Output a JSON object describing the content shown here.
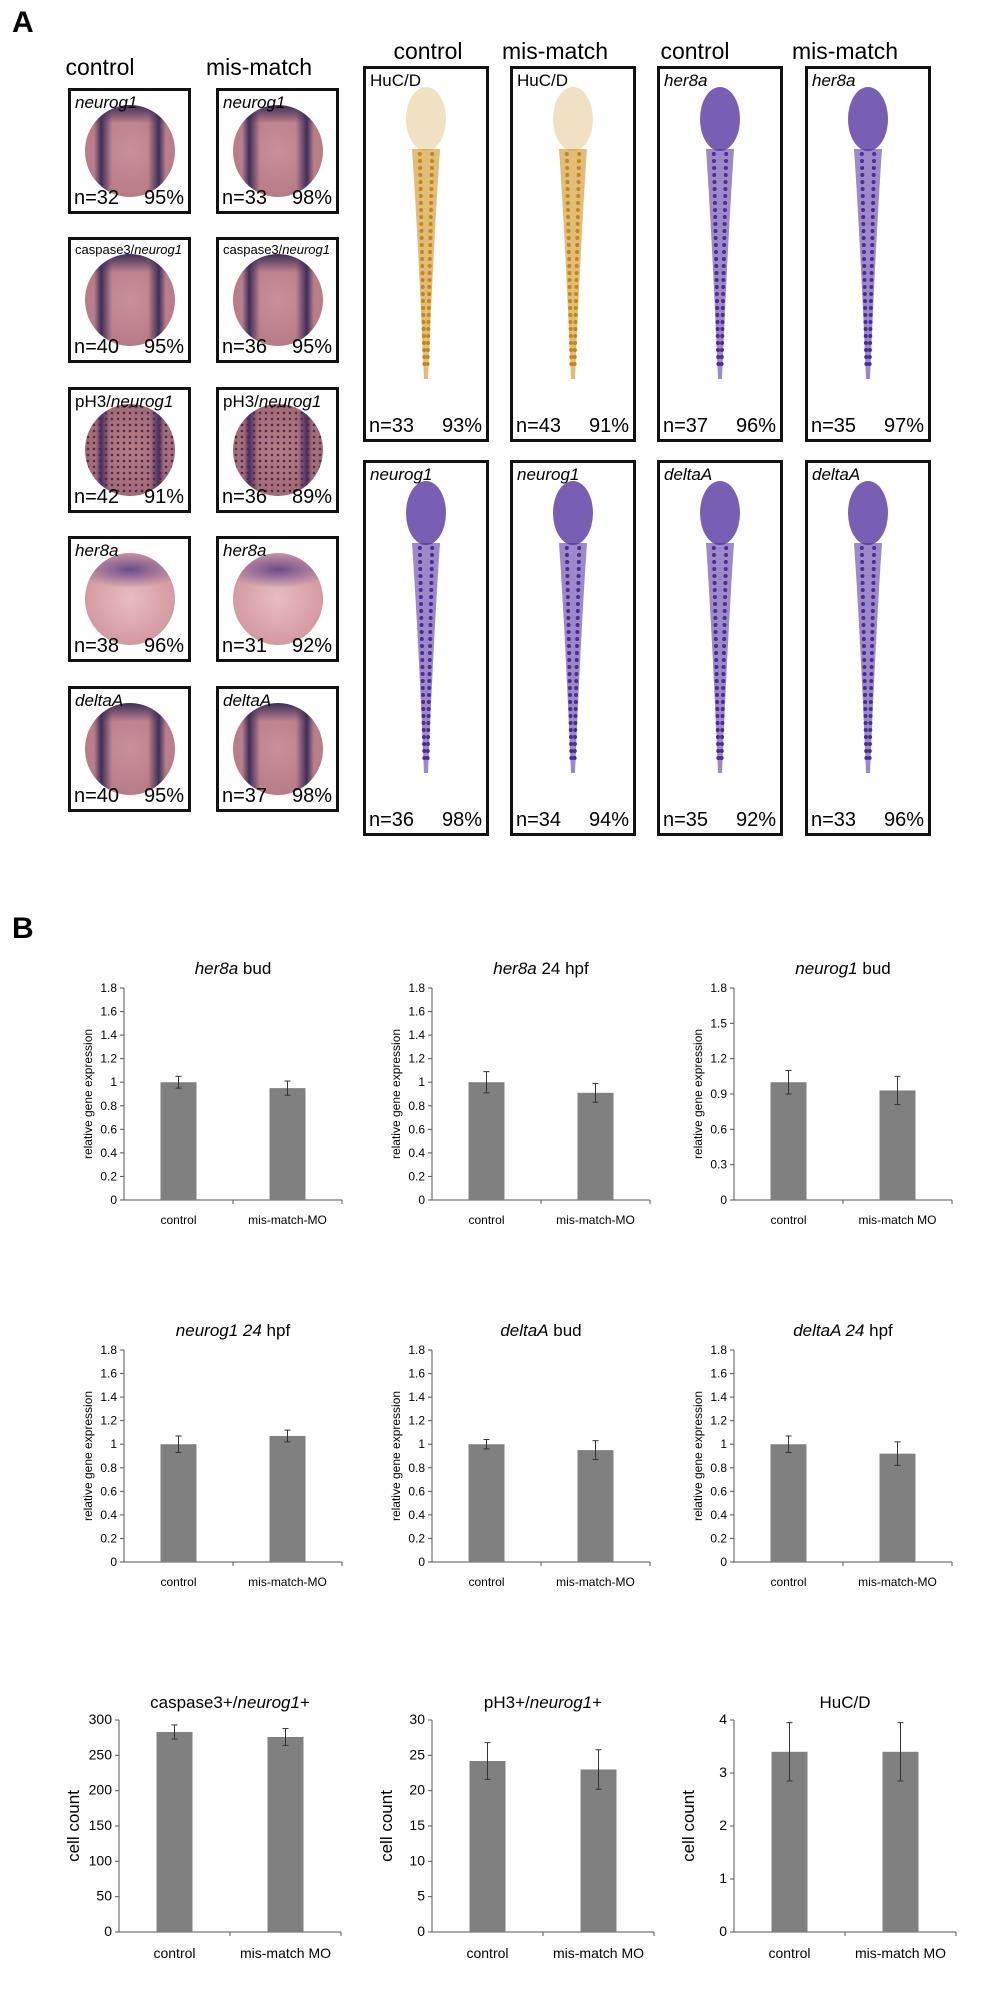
{
  "panel_a": {
    "letter": "A",
    "col_headers": [
      "control",
      "mis-match",
      "control",
      "mis-match",
      "control",
      "mis-match"
    ],
    "small_tiles": [
      {
        "label": "neurog1",
        "italic_part": "neurog1",
        "prefix": "",
        "n": "n=32",
        "pct": "95%",
        "col": 0,
        "row": 0,
        "stain": "dorsal"
      },
      {
        "label": "neurog1",
        "italic_part": "neurog1",
        "prefix": "",
        "n": "n=33",
        "pct": "98%",
        "col": 1,
        "row": 0,
        "stain": "dorsal"
      },
      {
        "label": "caspase3/neurog1",
        "italic_part": "neurog1",
        "prefix": "caspase3/",
        "n": "n=40",
        "pct": "95%",
        "col": 0,
        "row": 1,
        "stain": "dorsal"
      },
      {
        "label": "caspase3/neurog1",
        "italic_part": "neurog1",
        "prefix": "caspase3/",
        "n": "n=36",
        "pct": "95%",
        "col": 1,
        "row": 1,
        "stain": "dorsal"
      },
      {
        "label": "pH3/neurog1",
        "italic_part": "neurog1",
        "prefix": "pH3/",
        "n": "n=42",
        "pct": "91%",
        "col": 0,
        "row": 2,
        "stain": "dotted"
      },
      {
        "label": "pH3/neurog1",
        "italic_part": "neurog1",
        "prefix": "pH3/",
        "n": "n=36",
        "pct": "89%",
        "col": 1,
        "row": 2,
        "stain": "dotted"
      },
      {
        "label": "her8a",
        "italic_part": "her8a",
        "prefix": "",
        "n": "n=38",
        "pct": "96%",
        "col": 0,
        "row": 3,
        "stain": "band"
      },
      {
        "label": "her8a",
        "italic_part": "her8a",
        "prefix": "",
        "n": "n=31",
        "pct": "92%",
        "col": 1,
        "row": 3,
        "stain": "band"
      },
      {
        "label": "deltaA",
        "italic_part": "deltaA",
        "prefix": "",
        "n": "n=40",
        "pct": "95%",
        "col": 0,
        "row": 4,
        "stain": "dorsal"
      },
      {
        "label": "deltaA",
        "italic_part": "deltaA",
        "prefix": "",
        "n": "n=37",
        "pct": "98%",
        "col": 1,
        "row": 4,
        "stain": "dorsal"
      }
    ],
    "tall_tiles": [
      {
        "label": "HuC/D",
        "italic": false,
        "n": "n=33",
        "pct": "93%",
        "col": 0,
        "row": 0,
        "color": "#c8860f"
      },
      {
        "label": "HuC/D",
        "italic": false,
        "n": "n=43",
        "pct": "91%",
        "col": 1,
        "row": 0,
        "color": "#c8860f"
      },
      {
        "label": "her8a",
        "italic": true,
        "n": "n=37",
        "pct": "96%",
        "col": 2,
        "row": 0,
        "color": "#4b2a9a"
      },
      {
        "label": "her8a",
        "italic": true,
        "n": "n=35",
        "pct": "97%",
        "col": 3,
        "row": 0,
        "color": "#4b2a9a"
      },
      {
        "label": "neurog1",
        "italic": true,
        "n": "n=36",
        "pct": "98%",
        "col": 0,
        "row": 1,
        "color": "#4b2a9a"
      },
      {
        "label": "neurog1",
        "italic": true,
        "n": "n=34",
        "pct": "94%",
        "col": 1,
        "row": 1,
        "color": "#4b2a9a"
      },
      {
        "label": "deltaA",
        "italic": true,
        "n": "n=35",
        "pct": "92%",
        "col": 2,
        "row": 1,
        "color": "#4b2a9a"
      },
      {
        "label": "deltaA",
        "italic": true,
        "n": "n=33",
        "pct": "96%",
        "col": 3,
        "row": 1,
        "color": "#4b2a9a"
      }
    ]
  },
  "panel_b": {
    "letter": "B"
  },
  "colors": {
    "bar": "#808080",
    "axis": "#555555",
    "tile_border": "#111111"
  },
  "chart_data": [
    {
      "type": "bar",
      "title_italic": "her8a",
      "title_rest": " bud",
      "ylabel": "relative gene expression",
      "categories": [
        "control",
        "mis-match-MO"
      ],
      "values": [
        1.0,
        0.95
      ],
      "errors": [
        0.05,
        0.06
      ],
      "ylim": [
        0,
        1.8
      ],
      "yticks": [
        "0",
        "0.2",
        "0.4",
        "0.6",
        "0.8",
        "1",
        "1.2",
        "1.4",
        "1.6",
        "1.8"
      ],
      "grid": false
    },
    {
      "type": "bar",
      "title_italic": "her8a",
      "title_rest": " 24 hpf",
      "ylabel": "relative gene expression",
      "categories": [
        "control",
        "mis-match-MO"
      ],
      "values": [
        1.0,
        0.91
      ],
      "errors": [
        0.09,
        0.08
      ],
      "ylim": [
        0,
        1.8
      ],
      "yticks": [
        "0",
        "0.2",
        "0.4",
        "0.6",
        "0.8",
        "1",
        "1.2",
        "1.4",
        "1.6",
        "1.8"
      ],
      "grid": false
    },
    {
      "type": "bar",
      "title_italic": "neurog1",
      "title_rest": " bud",
      "ylabel": "relative gene expression",
      "categories": [
        "control",
        "mis-match MO"
      ],
      "values": [
        1.0,
        0.93
      ],
      "errors": [
        0.1,
        0.12
      ],
      "ylim": [
        0,
        1.8
      ],
      "yticks": [
        "0",
        "0.3",
        "0.6",
        "0.9",
        "1.2",
        "1.5",
        "1.8"
      ],
      "grid": false
    },
    {
      "type": "bar",
      "title_italic": "neurog1 24",
      "title_rest": " hpf",
      "ylabel": "relative gene expression",
      "categories": [
        "control",
        "mis-match-MO"
      ],
      "values": [
        1.0,
        1.07
      ],
      "errors": [
        0.07,
        0.05
      ],
      "ylim": [
        0,
        1.8
      ],
      "yticks": [
        "0",
        "0.2",
        "0.4",
        "0.6",
        "0.8",
        "1",
        "1.2",
        "1.4",
        "1.6",
        "1.8"
      ],
      "grid": false
    },
    {
      "type": "bar",
      "title_italic": "deltaA",
      "title_rest": " bud",
      "ylabel": "relative gene expression",
      "categories": [
        "control",
        "mis-match-MO"
      ],
      "values": [
        1.0,
        0.95
      ],
      "errors": [
        0.04,
        0.08
      ],
      "ylim": [
        0,
        1.8
      ],
      "yticks": [
        "0",
        "0.2",
        "0.4",
        "0.6",
        "0.8",
        "1",
        "1.2",
        "1.4",
        "1.6",
        "1.8"
      ],
      "grid": false
    },
    {
      "type": "bar",
      "title_italic": "deltaA 24",
      "title_rest": " hpf",
      "ylabel": "relative gene expression",
      "categories": [
        "control",
        "mis-match-MO"
      ],
      "values": [
        1.0,
        0.92
      ],
      "errors": [
        0.07,
        0.1
      ],
      "ylim": [
        0,
        1.8
      ],
      "yticks": [
        "0",
        "0.2",
        "0.4",
        "0.6",
        "0.8",
        "1",
        "1.2",
        "1.4",
        "1.6",
        "1.8"
      ],
      "grid": false
    },
    {
      "type": "bar",
      "title_prefix": "caspase3+/",
      "title_italic": "neurog1",
      "title_rest": "+",
      "ylabel": "cell count",
      "categories": [
        "control",
        "mis-match MO"
      ],
      "values": [
        283,
        276
      ],
      "errors": [
        10,
        12
      ],
      "ylim": [
        0,
        300
      ],
      "yticks": [
        "0",
        "50",
        "100",
        "150",
        "200",
        "250",
        "300"
      ],
      "grid": false
    },
    {
      "type": "bar",
      "title_prefix": "pH3+/",
      "title_italic": "neurog1",
      "title_rest": "+",
      "ylabel": "cell count",
      "categories": [
        "control",
        "mis-match MO"
      ],
      "values": [
        24.2,
        23.0
      ],
      "errors": [
        2.6,
        2.8
      ],
      "ylim": [
        0,
        30
      ],
      "yticks": [
        "0",
        "5",
        "10",
        "15",
        "20",
        "25",
        "30"
      ],
      "grid": false
    },
    {
      "type": "bar",
      "title_prefix": "HuC/D",
      "title_italic": "",
      "title_rest": "",
      "ylabel": "cell count",
      "categories": [
        "control",
        "mis-match MO"
      ],
      "values": [
        3.4,
        3.4
      ],
      "errors": [
        0.55,
        0.55
      ],
      "ylim": [
        0,
        4
      ],
      "yticks": [
        "0",
        "1",
        "2",
        "3",
        "4"
      ],
      "grid": false
    }
  ]
}
